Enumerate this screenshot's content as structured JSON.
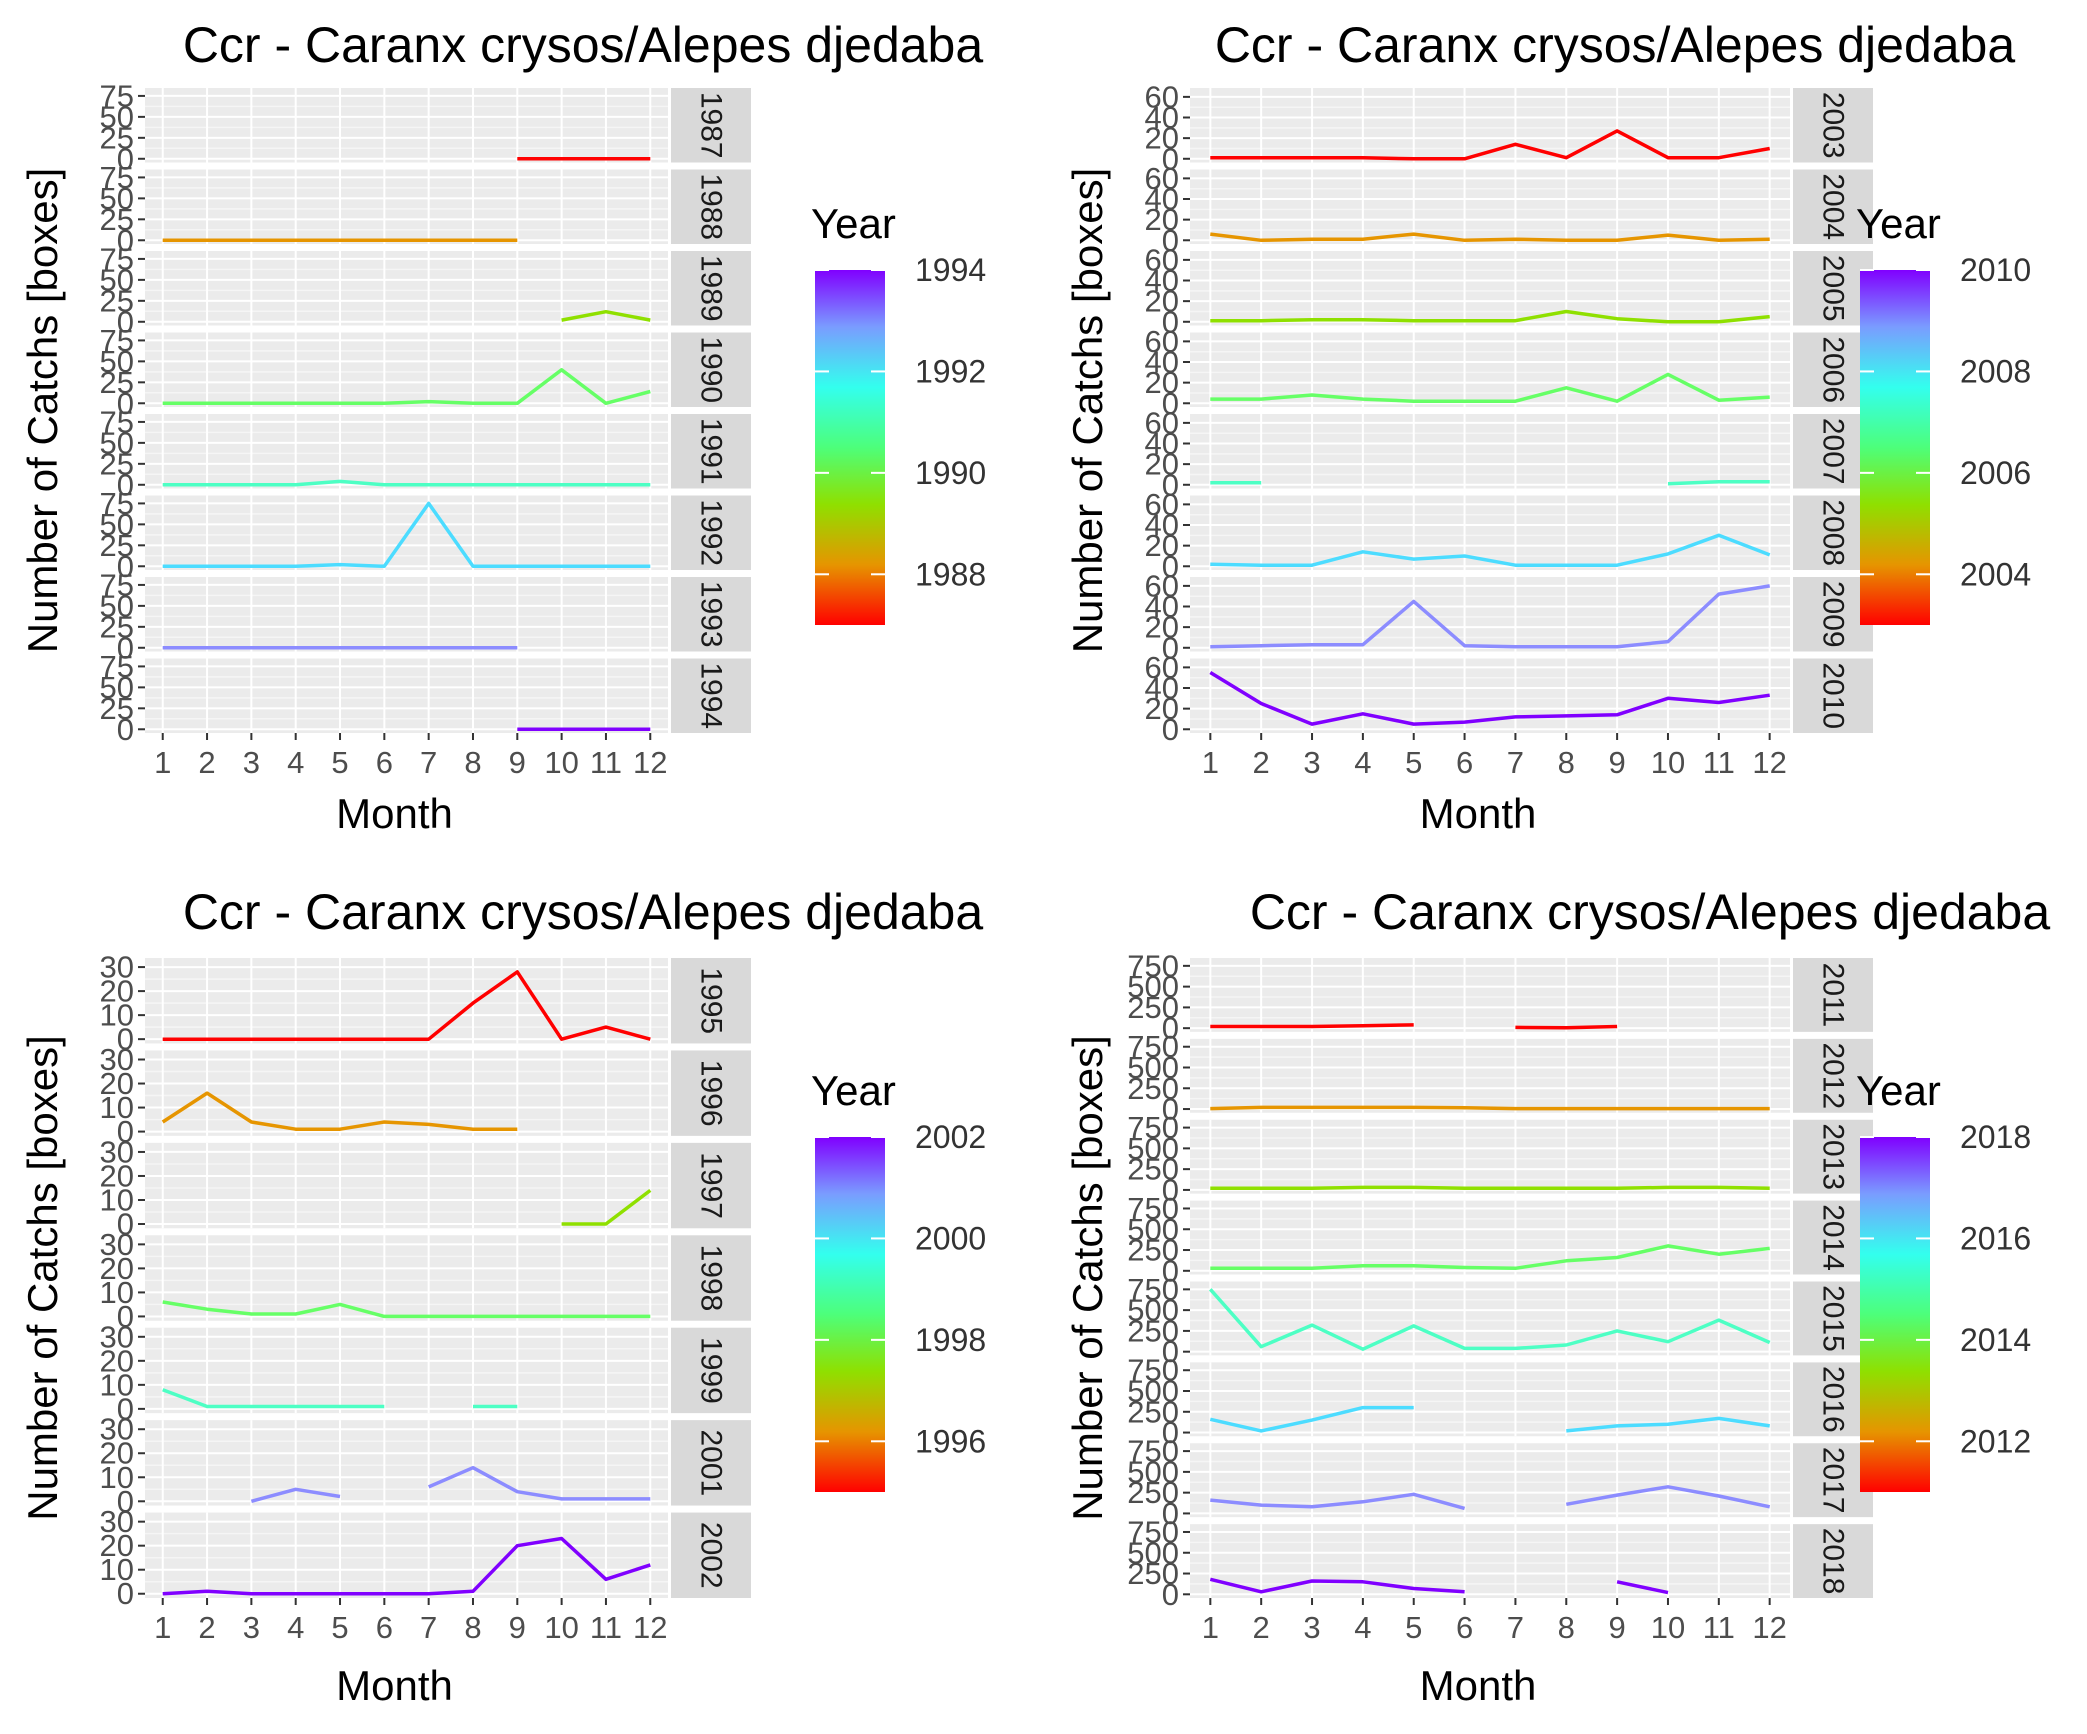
{
  "chart_data": [
    {
      "type": "line",
      "title": "Ccr - Caranx crysos/Alepes djedaba",
      "xlabel": "Month",
      "ylabel": "Number of Catchs [boxes]",
      "x": [
        1,
        2,
        3,
        4,
        5,
        6,
        7,
        8,
        9,
        10,
        11,
        12
      ],
      "yticks": [
        0,
        25,
        50,
        75
      ],
      "ylim": [
        0,
        80
      ],
      "legend": {
        "title": "Year",
        "range": [
          1987,
          1994
        ],
        "ticks": [
          1988,
          1990,
          1992,
          1994
        ]
      },
      "series": [
        {
          "name": "1987",
          "color": "#ff0000",
          "values": [
            null,
            null,
            null,
            null,
            null,
            null,
            null,
            null,
            0,
            0,
            0,
            0
          ]
        },
        {
          "name": "1988",
          "color": "#e69500",
          "values": [
            0,
            0,
            0,
            0,
            0,
            0,
            0,
            0,
            0,
            null,
            null,
            null
          ]
        },
        {
          "name": "1989",
          "color": "#8fe000",
          "values": [
            null,
            null,
            null,
            null,
            null,
            null,
            null,
            null,
            null,
            2,
            12,
            2
          ]
        },
        {
          "name": "1990",
          "color": "#66ff66",
          "values": [
            0,
            0,
            0,
            0,
            0,
            0,
            2,
            0,
            0,
            40,
            0,
            14
          ]
        },
        {
          "name": "1991",
          "color": "#4dffc4",
          "values": [
            0,
            0,
            0,
            0,
            4,
            0,
            0,
            0,
            0,
            0,
            0,
            0
          ]
        },
        {
          "name": "1992",
          "color": "#4cdcff",
          "values": [
            0,
            0,
            0,
            0,
            2,
            0,
            75,
            0,
            0,
            0,
            0,
            0
          ]
        },
        {
          "name": "1993",
          "color": "#8c8cff",
          "values": [
            0,
            0,
            0,
            0,
            0,
            0,
            0,
            0,
            0,
            null,
            null,
            null
          ]
        },
        {
          "name": "1994",
          "color": "#8000ff",
          "values": [
            null,
            null,
            null,
            null,
            null,
            null,
            null,
            null,
            0,
            0,
            0,
            0
          ]
        }
      ]
    },
    {
      "type": "line",
      "title": "Ccr - Caranx crysos/Alepes djedaba",
      "xlabel": "Month",
      "ylabel": "Number of Catchs [boxes]",
      "x": [
        1,
        2,
        3,
        4,
        5,
        6,
        7,
        8,
        9,
        10,
        11,
        12
      ],
      "yticks": [
        0,
        20,
        40,
        60
      ],
      "ylim": [
        0,
        65
      ],
      "legend": {
        "title": "Year",
        "range": [
          2003,
          2010
        ],
        "ticks": [
          2004,
          2006,
          2008,
          2010
        ]
      },
      "series": [
        {
          "name": "2003",
          "color": "#ff0000",
          "values": [
            1,
            1,
            1,
            1,
            0,
            0,
            14,
            1,
            27,
            1,
            1,
            10
          ]
        },
        {
          "name": "2004",
          "color": "#e69500",
          "values": [
            6,
            0,
            1,
            1,
            6,
            0,
            1,
            0,
            0,
            5,
            0,
            1
          ]
        },
        {
          "name": "2005",
          "color": "#8fe000",
          "values": [
            1,
            1,
            2,
            2,
            1,
            1,
            1,
            10,
            3,
            0,
            0,
            5
          ]
        },
        {
          "name": "2006",
          "color": "#66ff66",
          "values": [
            4,
            4,
            8,
            4,
            2,
            2,
            2,
            15,
            2,
            28,
            3,
            6
          ]
        },
        {
          "name": "2007",
          "color": "#4dffc4",
          "values": [
            2,
            2,
            null,
            null,
            null,
            null,
            null,
            null,
            null,
            1,
            3,
            3
          ]
        },
        {
          "name": "2008",
          "color": "#4cdcff",
          "values": [
            2,
            1,
            1,
            14,
            7,
            10,
            1,
            1,
            1,
            12,
            30,
            11
          ]
        },
        {
          "name": "2009",
          "color": "#8c8cff",
          "values": [
            1,
            2,
            3,
            3,
            45,
            2,
            1,
            1,
            1,
            6,
            52,
            60
          ]
        },
        {
          "name": "2010",
          "color": "#8000ff",
          "values": [
            55,
            25,
            5,
            15,
            5,
            7,
            12,
            13,
            14,
            30,
            26,
            33
          ]
        }
      ]
    },
    {
      "type": "line",
      "title": "Ccr - Caranx crysos/Alepes djedaba",
      "xlabel": "Month",
      "ylabel": "Number of Catchs [boxes]",
      "x": [
        1,
        2,
        3,
        4,
        5,
        6,
        7,
        8,
        9,
        10,
        11,
        12
      ],
      "yticks": [
        0,
        10,
        20,
        30
      ],
      "ylim": [
        0,
        32
      ],
      "legend": {
        "title": "Year",
        "range": [
          1995,
          2002
        ],
        "ticks": [
          1996,
          1998,
          2000,
          2002
        ]
      },
      "series": [
        {
          "name": "1995",
          "color": "#ff0000",
          "values": [
            0,
            0,
            0,
            0,
            0,
            0,
            0,
            15,
            28,
            0,
            5,
            0
          ]
        },
        {
          "name": "1996",
          "color": "#e69500",
          "values": [
            4,
            16,
            4,
            1,
            1,
            4,
            3,
            1,
            1,
            null,
            null,
            null
          ]
        },
        {
          "name": "1997",
          "color": "#8fe000",
          "values": [
            null,
            null,
            null,
            null,
            null,
            null,
            null,
            null,
            null,
            0,
            0,
            14
          ]
        },
        {
          "name": "1998",
          "color": "#66ff66",
          "values": [
            6,
            3,
            1,
            1,
            5,
            0,
            0,
            0,
            0,
            0,
            0,
            0
          ]
        },
        {
          "name": "1999",
          "color": "#4dffc4",
          "values": [
            8,
            1,
            1,
            1,
            1,
            1,
            null,
            1,
            1,
            null,
            null,
            null
          ]
        },
        {
          "name": "2001",
          "color": "#8c8cff",
          "values": [
            null,
            null,
            0,
            5,
            2,
            null,
            6,
            14,
            4,
            1,
            1,
            1
          ]
        },
        {
          "name": "2002",
          "color": "#8000ff",
          "values": [
            0,
            1,
            0,
            0,
            0,
            0,
            0,
            1,
            20,
            23,
            6,
            12
          ]
        }
      ]
    },
    {
      "type": "line",
      "title": "Ccr - Caranx crysos/Alepes djedaba",
      "xlabel": "Month",
      "ylabel": "Number of Catchs [boxes]",
      "x": [
        1,
        2,
        3,
        4,
        5,
        6,
        7,
        8,
        9,
        10,
        11,
        12
      ],
      "yticks": [
        0,
        250,
        500,
        750
      ],
      "ylim": [
        0,
        800
      ],
      "legend": {
        "title": "Year",
        "range": [
          2011,
          2018
        ],
        "ticks": [
          2012,
          2014,
          2016,
          2018
        ]
      },
      "series": [
        {
          "name": "2011",
          "color": "#ff0000",
          "values": [
            20,
            20,
            20,
            30,
            40,
            null,
            10,
            5,
            20,
            null,
            null,
            null
          ]
        },
        {
          "name": "2012",
          "color": "#e69500",
          "values": [
            5,
            20,
            20,
            20,
            20,
            15,
            5,
            5,
            5,
            5,
            5,
            5
          ]
        },
        {
          "name": "2013",
          "color": "#8fe000",
          "values": [
            20,
            20,
            20,
            30,
            30,
            20,
            20,
            20,
            20,
            30,
            30,
            20
          ]
        },
        {
          "name": "2014",
          "color": "#66ff66",
          "values": [
            30,
            30,
            30,
            60,
            60,
            40,
            30,
            120,
            160,
            300,
            200,
            270
          ]
        },
        {
          "name": "2015",
          "color": "#4dffc4",
          "values": [
            750,
            60,
            320,
            30,
            310,
            40,
            40,
            80,
            250,
            120,
            380,
            110
          ]
        },
        {
          "name": "2016",
          "color": "#4cdcff",
          "values": [
            160,
            20,
            150,
            300,
            300,
            null,
            null,
            20,
            80,
            100,
            170,
            80
          ]
        },
        {
          "name": "2017",
          "color": "#8c8cff",
          "values": [
            160,
            100,
            80,
            140,
            230,
            60,
            null,
            110,
            220,
            320,
            210,
            80
          ]
        },
        {
          "name": "2018",
          "color": "#8000ff",
          "values": [
            180,
            30,
            160,
            150,
            70,
            30,
            null,
            null,
            150,
            20,
            null,
            null
          ]
        }
      ]
    }
  ]
}
